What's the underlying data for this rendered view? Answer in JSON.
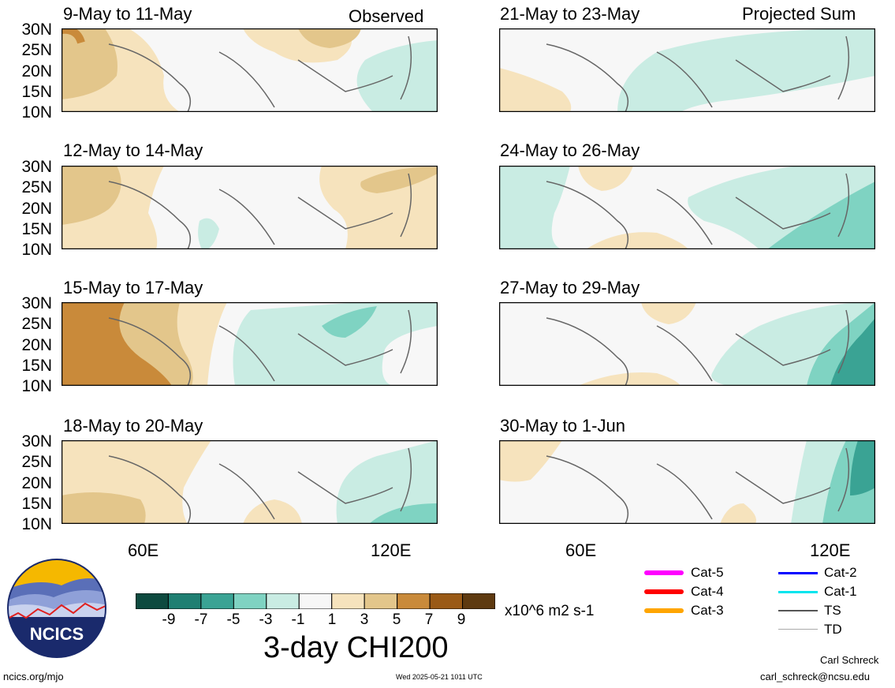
{
  "header": {
    "observed_label": "Observed",
    "projected_label": "Projected Sum"
  },
  "panels_left": [
    {
      "title": "9-May to 11-May"
    },
    {
      "title": "12-May to 14-May"
    },
    {
      "title": "15-May to 17-May"
    },
    {
      "title": "18-May to 20-May"
    }
  ],
  "panels_right": [
    {
      "title": "21-May to 23-May"
    },
    {
      "title": "24-May to 26-May"
    },
    {
      "title": "27-May to 29-May"
    },
    {
      "title": "30-May to 1-Jun"
    }
  ],
  "y_ticks": [
    "30N",
    "25N",
    "20N",
    "15N",
    "10N"
  ],
  "x_ticks": [
    "60E",
    "120E"
  ],
  "colorbar": {
    "title": "3-day CHI200",
    "units": "x10^6 m2 s-1",
    "labels": [
      "-9",
      "-7",
      "-5",
      "-3",
      "-1",
      "1",
      "3",
      "5",
      "7",
      "9"
    ],
    "colors": [
      "#0d4a3f",
      "#1f7f72",
      "#3aa394",
      "#7fd3c2",
      "#c9ece3",
      "#f7f7f7",
      "#f6e3bd",
      "#e3c68b",
      "#c98a3a",
      "#9a5a16",
      "#5e3a10"
    ]
  },
  "storm_legend": [
    {
      "label": "Cat-5",
      "color": "#ff00ff"
    },
    {
      "label": "Cat-4",
      "color": "#ff0000"
    },
    {
      "label": "Cat-3",
      "color": "#ffa500"
    },
    {
      "label": "Cat-2",
      "color": "#0000ff"
    },
    {
      "label": "Cat-1",
      "color": "#00e5ee"
    },
    {
      "label": "TS",
      "color": "#555555"
    },
    {
      "label": "TD",
      "color": "#aaaaaa"
    }
  ],
  "logo": {
    "text": "NCICS"
  },
  "footer": {
    "url": "ncics.org/mjo",
    "timestamp": "Wed 2025-05-21 1011 UTC",
    "author": "Carl Schreck",
    "email": "carl_schreck@ncsu.edu"
  }
}
